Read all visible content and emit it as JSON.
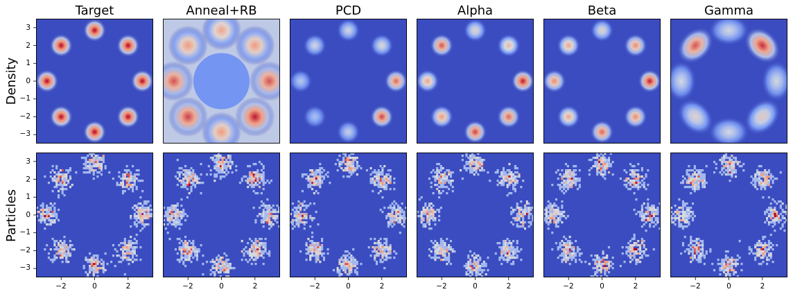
{
  "figure": {
    "row_labels": [
      "Density",
      "Particles"
    ],
    "panel_titles": [
      "Target",
      "Anneal+RB",
      "PCD",
      "Alpha",
      "Beta",
      "Gamma"
    ],
    "x_ticks": [
      "−2",
      "0",
      "2"
    ],
    "y_ticks": [
      "3",
      "2",
      "1",
      "0",
      "−1",
      "−2",
      "−3"
    ]
  },
  "colors": {
    "background": "#3b4cc0",
    "low": "#3b4cc0",
    "mid": "#dddddd",
    "high": "#b40426",
    "colormap": "coolwarm"
  },
  "chart_data": [
    {
      "type": "heatmap",
      "row": "Density",
      "title": "Target",
      "xlim": [
        -3.5,
        3.5
      ],
      "ylim": [
        -3.5,
        3.5
      ],
      "modes": [
        [
          0,
          2.85
        ],
        [
          2.0,
          2.0
        ],
        [
          2.85,
          0
        ],
        [
          2.0,
          -2.0
        ],
        [
          0,
          -2.85
        ],
        [
          -2.0,
          -2.0
        ],
        [
          -2.85,
          0
        ],
        [
          -2.0,
          2.0
        ]
      ],
      "mode_intensity": [
        1,
        1,
        1,
        1,
        1,
        1,
        1,
        1
      ]
    },
    {
      "type": "heatmap",
      "row": "Density",
      "title": "Anneal+RB",
      "xlim": [
        -3.5,
        3.5
      ],
      "ylim": [
        -3.5,
        3.5
      ],
      "modes": [
        [
          0,
          2.85
        ],
        [
          2.0,
          2.0
        ],
        [
          2.85,
          0
        ],
        [
          2.0,
          -2.0
        ],
        [
          0,
          -2.85
        ],
        [
          -2.0,
          -2.0
        ],
        [
          -2.85,
          0
        ],
        [
          -2.0,
          2.0
        ]
      ],
      "mode_intensity": [
        0.55,
        0.6,
        0.8,
        0.95,
        0.6,
        0.85,
        0.8,
        0.6
      ]
    },
    {
      "type": "heatmap",
      "row": "Density",
      "title": "PCD",
      "xlim": [
        -3.5,
        3.5
      ],
      "ylim": [
        -3.5,
        3.5
      ],
      "modes": [
        [
          0,
          2.85
        ],
        [
          2.0,
          2.0
        ],
        [
          2.85,
          0
        ],
        [
          2.0,
          -2.0
        ],
        [
          0,
          -2.85
        ],
        [
          -2.0,
          -2.0
        ],
        [
          -2.85,
          0
        ],
        [
          -2.0,
          2.0
        ]
      ],
      "mode_intensity": [
        0.2,
        0.25,
        0.75,
        0.85,
        0.15,
        0.05,
        0.1,
        0.2
      ]
    },
    {
      "type": "heatmap",
      "row": "Density",
      "title": "Alpha",
      "xlim": [
        -3.5,
        3.5
      ],
      "ylim": [
        -3.5,
        3.5
      ],
      "modes": [
        [
          0,
          2.85
        ],
        [
          2.0,
          2.0
        ],
        [
          2.85,
          0
        ],
        [
          2.0,
          -2.0
        ],
        [
          0,
          -2.85
        ],
        [
          -2.0,
          -2.0
        ],
        [
          -2.85,
          0
        ],
        [
          -2.0,
          2.0
        ]
      ],
      "mode_intensity": [
        0.3,
        0.45,
        0.95,
        0.75,
        0.85,
        0.6,
        0.55,
        0.8
      ]
    },
    {
      "type": "heatmap",
      "row": "Density",
      "title": "Beta",
      "xlim": [
        -3.5,
        3.5
      ],
      "ylim": [
        -3.5,
        3.5
      ],
      "modes": [
        [
          0,
          2.85
        ],
        [
          2.0,
          2.0
        ],
        [
          2.85,
          0
        ],
        [
          2.0,
          -2.0
        ],
        [
          0,
          -2.85
        ],
        [
          -2.0,
          -2.0
        ],
        [
          -2.85,
          0
        ],
        [
          -2.0,
          2.0
        ]
      ],
      "mode_intensity": [
        0.3,
        0.65,
        0.95,
        0.65,
        0.75,
        0.55,
        0.65,
        0.55
      ]
    },
    {
      "type": "heatmap",
      "row": "Density",
      "title": "Gamma",
      "xlim": [
        -3.5,
        3.5
      ],
      "ylim": [
        -3.5,
        3.5
      ],
      "modes": [
        [
          0,
          2.85
        ],
        [
          2.0,
          2.0
        ],
        [
          2.85,
          0
        ],
        [
          2.0,
          -2.0
        ],
        [
          0,
          -2.85
        ],
        [
          -2.0,
          -2.0
        ],
        [
          -2.85,
          0
        ],
        [
          -2.0,
          2.0
        ]
      ],
      "mode_intensity": [
        0.2,
        0.9,
        0.2,
        0.35,
        0.2,
        0.3,
        0.2,
        0.8
      ]
    },
    {
      "type": "heatmap",
      "row": "Particles",
      "title": "Target",
      "xlim": [
        -3.5,
        3.5
      ],
      "ylim": [
        -3.5,
        3.5
      ],
      "modes": [
        [
          0,
          2.85
        ],
        [
          2.0,
          2.0
        ],
        [
          2.85,
          0
        ],
        [
          2.0,
          -2.0
        ],
        [
          0,
          -2.85
        ],
        [
          -2.0,
          -2.0
        ],
        [
          -2.85,
          0
        ],
        [
          -2.0,
          2.0
        ]
      ],
      "mode_intensity": [
        0.8,
        0.8,
        0.95,
        0.8,
        0.8,
        0.8,
        0.8,
        0.8
      ]
    },
    {
      "type": "heatmap",
      "row": "Particles",
      "title": "Anneal+RB",
      "xlim": [
        -3.5,
        3.5
      ],
      "ylim": [
        -3.5,
        3.5
      ],
      "modes": [
        [
          0,
          2.85
        ],
        [
          2.0,
          2.0
        ],
        [
          2.85,
          0
        ],
        [
          2.0,
          -2.0
        ],
        [
          0,
          -2.85
        ],
        [
          -2.0,
          -2.0
        ],
        [
          -2.85,
          0
        ],
        [
          -2.0,
          2.0
        ]
      ],
      "mode_intensity": [
        0.9,
        0.95,
        0.8,
        0.95,
        0.85,
        0.95,
        0.85,
        0.9
      ]
    },
    {
      "type": "heatmap",
      "row": "Particles",
      "title": "PCD",
      "xlim": [
        -3.5,
        3.5
      ],
      "ylim": [
        -3.5,
        3.5
      ],
      "modes": [
        [
          0,
          2.85
        ],
        [
          2.0,
          2.0
        ],
        [
          2.85,
          0
        ],
        [
          2.0,
          -2.0
        ],
        [
          0,
          -2.85
        ],
        [
          -2.0,
          -2.0
        ],
        [
          -2.85,
          0
        ],
        [
          -2.0,
          2.0
        ]
      ],
      "mode_intensity": [
        0.85,
        0.85,
        0.8,
        0.8,
        0.85,
        0.8,
        0.8,
        0.8
      ]
    },
    {
      "type": "heatmap",
      "row": "Particles",
      "title": "Alpha",
      "xlim": [
        -3.5,
        3.5
      ],
      "ylim": [
        -3.5,
        3.5
      ],
      "modes": [
        [
          0,
          2.85
        ],
        [
          2.0,
          2.0
        ],
        [
          2.85,
          0
        ],
        [
          2.0,
          -2.0
        ],
        [
          0,
          -2.85
        ],
        [
          -2.0,
          -2.0
        ],
        [
          -2.85,
          0
        ],
        [
          -2.0,
          2.0
        ]
      ],
      "mode_intensity": [
        0.8,
        0.8,
        0.8,
        0.8,
        0.8,
        0.8,
        0.8,
        0.8
      ]
    },
    {
      "type": "heatmap",
      "row": "Particles",
      "title": "Beta",
      "xlim": [
        -3.5,
        3.5
      ],
      "ylim": [
        -3.5,
        3.5
      ],
      "modes": [
        [
          0,
          2.85
        ],
        [
          2.0,
          2.0
        ],
        [
          2.85,
          0
        ],
        [
          2.0,
          -2.0
        ],
        [
          0,
          -2.85
        ],
        [
          -2.0,
          -2.0
        ],
        [
          -2.85,
          0
        ],
        [
          -2.0,
          2.0
        ]
      ],
      "mode_intensity": [
        0.85,
        0.8,
        0.8,
        0.85,
        0.85,
        0.85,
        0.85,
        0.85
      ]
    },
    {
      "type": "heatmap",
      "row": "Particles",
      "title": "Gamma",
      "xlim": [
        -3.5,
        3.5
      ],
      "ylim": [
        -3.5,
        3.5
      ],
      "modes": [
        [
          0,
          2.85
        ],
        [
          2.0,
          2.0
        ],
        [
          2.85,
          0
        ],
        [
          2.0,
          -2.0
        ],
        [
          0,
          -2.85
        ],
        [
          -2.0,
          -2.0
        ],
        [
          -2.85,
          0
        ],
        [
          -2.0,
          2.0
        ]
      ],
      "mode_intensity": [
        0.8,
        0.8,
        0.8,
        0.8,
        0.85,
        0.8,
        0.8,
        0.9
      ]
    }
  ]
}
